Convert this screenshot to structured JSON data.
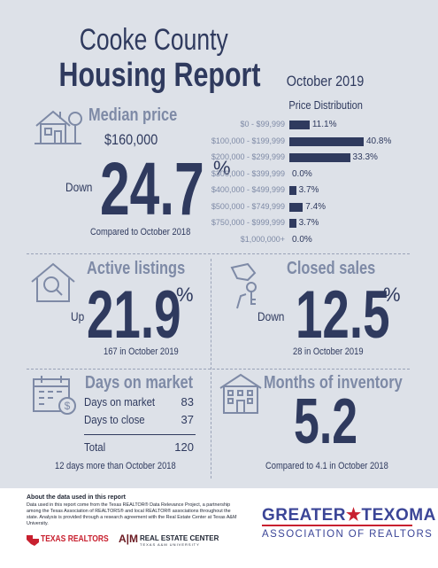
{
  "header": {
    "title_line1": "Cooke County",
    "title_line2": "Housing Report",
    "month": "October 2019"
  },
  "median": {
    "title": "Median price",
    "price": "$160,000",
    "direction": "Down",
    "change": "24.7",
    "pct": "%",
    "note": "Compared to October 2018"
  },
  "price_distribution": {
    "title": "Price Distribution"
  },
  "chart_data": {
    "type": "bar",
    "title": "Price Distribution",
    "orientation": "horizontal",
    "categories": [
      "$0 - $99,999",
      "$100,000 - $199,999",
      "$200,000 - $299,999",
      "$300,000 - $399,999",
      "$400,000 - $499,999",
      "$500,000 - $749,999",
      "$750,000 - $999,999",
      "$1,000,000+"
    ],
    "values": [
      11.1,
      40.8,
      33.3,
      0.0,
      3.7,
      7.4,
      3.7,
      0.0
    ],
    "value_labels": [
      "11.1%",
      "40.8%",
      "33.3%",
      "0.0%",
      "3.7%",
      "7.4%",
      "3.7%",
      "0.0%"
    ],
    "xlim": [
      0,
      40.8
    ],
    "color": "#2f3a5e"
  },
  "active": {
    "title": "Active listings",
    "direction": "Up",
    "change": "21.9",
    "pct": "%",
    "note": "167 in October 2019"
  },
  "closed": {
    "title": "Closed sales",
    "direction": "Down",
    "change": "12.5",
    "pct": "%",
    "note": "28 in October 2019"
  },
  "days": {
    "title": "Days on market",
    "rows": [
      {
        "label": "Days on market",
        "value": "83"
      },
      {
        "label": "Days to close",
        "value": "37"
      }
    ],
    "total_label": "Total",
    "total_value": "120",
    "note": "12 days more than October 2018"
  },
  "inventory": {
    "title": "Months of inventory",
    "value": "5.2",
    "note": "Compared to 4.1 in October 2018"
  },
  "footer": {
    "about_title": "About the data used in this report",
    "about_text": "Data used in this report come from the Texas REALTOR® Data Relevance Project, a partnership among the Texas Association of REALTORS® and local REALTOR® associations throughout the state. Analysis is provided through a research agreement with the Real Estate Center at Texas A&M University.",
    "texas_realtors": "TEXAS REALTORS",
    "atm": "A|M",
    "rec_line1": "REAL ESTATE CENTER",
    "rec_line2": "TEXAS A&M UNIVERSITY",
    "gt_line1": "GREATER",
    "gt_star": "★",
    "gt_line1b": "TEXOMA",
    "gt_line2": "ASSOCIATION OF REALTORS"
  },
  "colors": {
    "navy": "#2f3a5e",
    "light": "#7e8aa6",
    "background": "#dde1e8",
    "brand_red": "#c8202f",
    "texoma_blue": "#3b4597"
  }
}
